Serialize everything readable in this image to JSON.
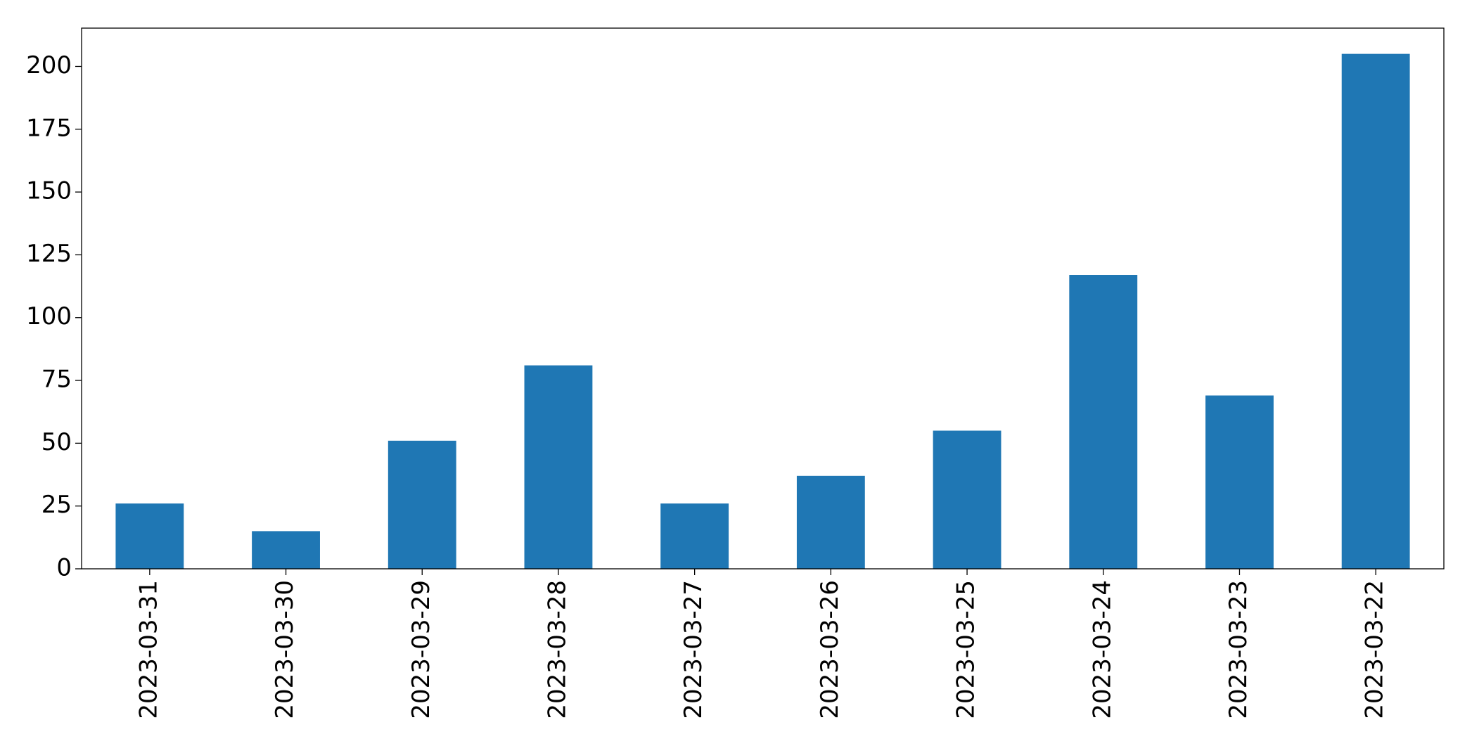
{
  "chart_data": {
    "type": "bar",
    "categories": [
      "2023-03-31",
      "2023-03-30",
      "2023-03-29",
      "2023-03-28",
      "2023-03-27",
      "2023-03-26",
      "2023-03-25",
      "2023-03-24",
      "2023-03-23",
      "2023-03-22"
    ],
    "values": [
      26,
      15,
      51,
      81,
      26,
      37,
      55,
      117,
      69,
      205
    ],
    "color": "#1f77b4",
    "ylim": [
      0,
      215.25
    ],
    "yticks": [
      0,
      25,
      50,
      75,
      100,
      125,
      150,
      175,
      200
    ],
    "grid": false
  }
}
